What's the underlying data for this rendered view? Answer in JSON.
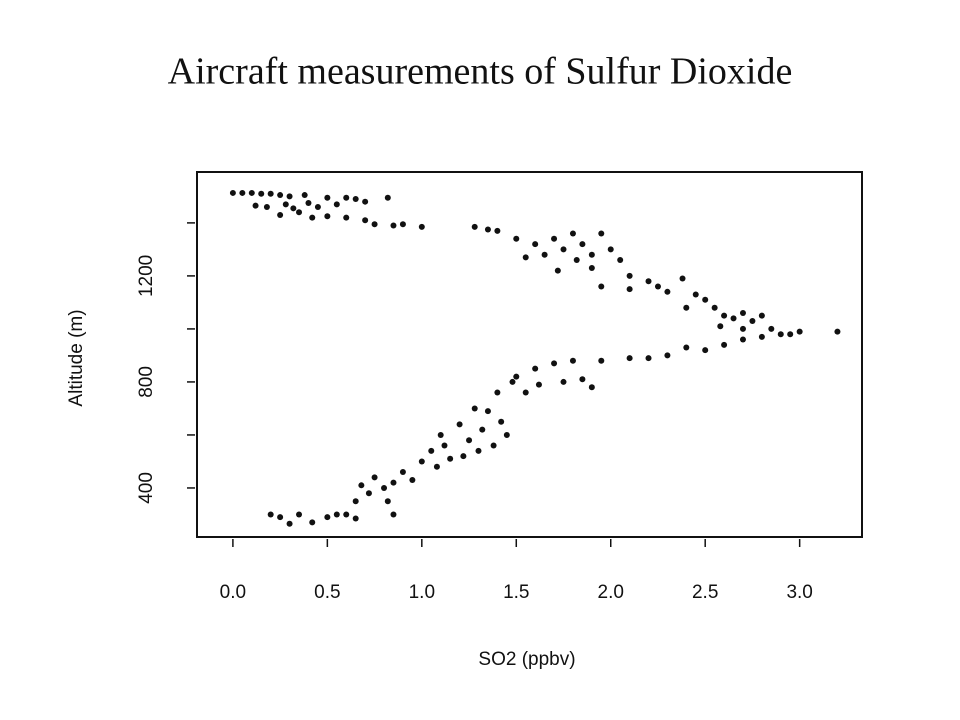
{
  "chart_data": {
    "type": "scatter",
    "title": "Aircraft measurements of Sulfur Dioxide",
    "x_label": "SO2 (ppbv)",
    "y_label": "Altitude (m)",
    "xlim": [
      -0.19,
      3.33
    ],
    "ylim": [
      215,
      1592
    ],
    "xticks": [
      {
        "value": 0,
        "label": "0.0"
      },
      0.5,
      {
        "value": 1,
        "label": "1.0"
      },
      1.5,
      {
        "value": 2,
        "label": "2.0"
      },
      2.5,
      {
        "value": 3,
        "label": "3.0"
      }
    ],
    "yticks": [
      400,
      800,
      1200
    ],
    "yminor_ticks": [
      600,
      1000,
      1400
    ],
    "color": "#111111",
    "series": [
      {
        "name": "SO2",
        "x": [
          0.0,
          0.05,
          0.1,
          0.15,
          0.2,
          0.25,
          0.3,
          0.38,
          0.5,
          0.6,
          0.65,
          0.82,
          0.12,
          0.18,
          0.28,
          0.32,
          0.4,
          0.45,
          0.55,
          0.7,
          0.25,
          0.35,
          0.42,
          0.5,
          0.6,
          0.7,
          0.75,
          0.85,
          0.9,
          1.0,
          1.28,
          1.35,
          1.4,
          1.5,
          1.6,
          1.65,
          1.7,
          1.75,
          1.8,
          1.82,
          1.85,
          1.9,
          1.95,
          2.0,
          1.55,
          1.72,
          1.9,
          1.95,
          2.05,
          2.1,
          2.1,
          2.2,
          2.25,
          2.3,
          2.38,
          2.45,
          2.5,
          2.4,
          2.55,
          2.6,
          2.65,
          2.7,
          2.75,
          2.58,
          2.8,
          2.7,
          0.2,
          0.25,
          0.3,
          0.35,
          0.42,
          0.5,
          0.55,
          0.6,
          0.65,
          0.65,
          0.68,
          0.72,
          0.75,
          0.8,
          0.85,
          0.82,
          0.85,
          0.9,
          0.95,
          1.0,
          1.05,
          1.08,
          1.1,
          1.12,
          1.15,
          1.2,
          1.22,
          1.25,
          1.3,
          1.28,
          1.32,
          1.35,
          1.38,
          1.4,
          1.42,
          1.45,
          1.48,
          1.5,
          1.55,
          1.6,
          1.62,
          1.7,
          1.75,
          1.8,
          1.85,
          1.9,
          1.95,
          2.1,
          2.2,
          2.3,
          2.4,
          2.5,
          2.6,
          2.7,
          2.8,
          2.9,
          3.0,
          3.2,
          2.85,
          2.95
        ],
        "values": [
          1513,
          1513,
          1513,
          1510,
          1510,
          1505,
          1500,
          1505,
          1495,
          1495,
          1490,
          1495,
          1465,
          1460,
          1470,
          1455,
          1475,
          1460,
          1470,
          1480,
          1430,
          1440,
          1420,
          1425,
          1420,
          1410,
          1395,
          1390,
          1395,
          1385,
          1385,
          1375,
          1370,
          1340,
          1320,
          1280,
          1340,
          1300,
          1360,
          1260,
          1320,
          1280,
          1360,
          1300,
          1270,
          1220,
          1230,
          1160,
          1260,
          1200,
          1150,
          1180,
          1160,
          1140,
          1190,
          1130,
          1110,
          1080,
          1080,
          1050,
          1040,
          1060,
          1030,
          1010,
          1050,
          1000,
          300,
          290,
          265,
          300,
          270,
          290,
          300,
          300,
          285,
          350,
          410,
          380,
          440,
          400,
          420,
          350,
          300,
          460,
          430,
          500,
          540,
          480,
          600,
          560,
          510,
          640,
          520,
          580,
          540,
          700,
          620,
          690,
          560,
          760,
          650,
          600,
          800,
          820,
          760,
          850,
          790,
          870,
          800,
          880,
          810,
          780,
          880,
          890,
          890,
          900,
          930,
          920,
          940,
          960,
          970,
          980,
          990,
          990,
          1000,
          980
        ]
      }
    ]
  }
}
